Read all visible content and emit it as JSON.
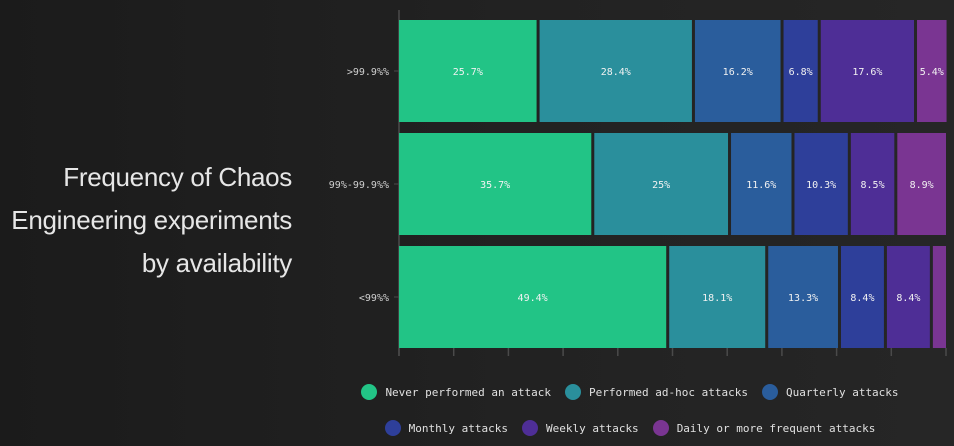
{
  "title_lines": [
    "Frequency of Chaos",
    "Engineering experiments",
    "by availability"
  ],
  "colors": [
    "#22c486",
    "#2a8f9c",
    "#2a5d9c",
    "#2e3f9a",
    "#4e2e96",
    "#7a3592"
  ],
  "legend": [
    [
      "Never performed an attack",
      "Performed ad-hoc attacks",
      "Quarterly attacks"
    ],
    [
      "Monthly attacks",
      "Weekly attacks",
      "Daily or more frequent attacks"
    ]
  ],
  "chart_data": {
    "type": "bar",
    "orientation": "horizontal",
    "stacked": true,
    "normalized_percent": true,
    "title": "Frequency of Chaos Engineering experiments by availability",
    "categories": [
      ">99.9%%",
      "99%-99.9%%",
      "<99%%"
    ],
    "series": [
      {
        "name": "Never performed an attack",
        "values": [
          25.7,
          35.7,
          49.4
        ]
      },
      {
        "name": "Performed ad-hoc attacks",
        "values": [
          28.4,
          25,
          18.1
        ]
      },
      {
        "name": "Quarterly attacks",
        "values": [
          16.2,
          11.6,
          13.3
        ]
      },
      {
        "name": "Monthly attacks",
        "values": [
          6.8,
          10.3,
          8.4
        ]
      },
      {
        "name": "Weekly attacks",
        "values": [
          17.6,
          8.5,
          8.4
        ]
      },
      {
        "name": "Daily or more frequent attacks",
        "values": [
          5.4,
          8.9,
          2.4
        ]
      }
    ],
    "segment_labels": [
      [
        "25.7%",
        "28.4%",
        "16.2%",
        "6.8%",
        "17.6%",
        "5.4%"
      ],
      [
        "35.7%",
        "25%",
        "11.6%",
        "10.3%",
        "8.5%",
        "8.9%"
      ],
      [
        "49.4%",
        "18.1%",
        "13.3%",
        "8.4%",
        "8.4%",
        ""
      ]
    ],
    "xlim": [
      0,
      100
    ],
    "legend_position": "bottom"
  }
}
